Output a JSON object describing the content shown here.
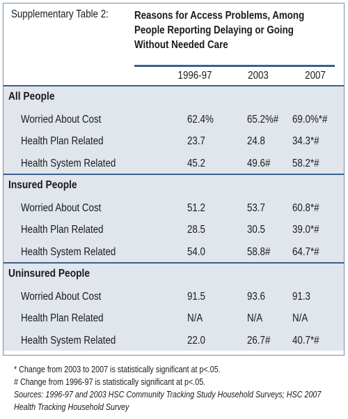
{
  "table_label": "Supplementary Table 2:",
  "title_lines": [
    "Reasons for Access Problems, Among",
    "People Reporting Delaying or Going",
    "Without Needed Care"
  ],
  "columns": [
    "1996-97",
    "2003",
    "2007"
  ],
  "sections": [
    {
      "name": "All People",
      "rows": [
        {
          "label": "Worried About Cost",
          "values": [
            "62.4%",
            "65.2%#",
            "69.0%*#"
          ]
        },
        {
          "label": "Health Plan Related",
          "values": [
            "23.7",
            "24.8",
            "34.3*#"
          ]
        },
        {
          "label": "Health System Related",
          "values": [
            "45.2",
            "49.6#",
            "58.2*#"
          ]
        }
      ]
    },
    {
      "name": "Insured People",
      "rows": [
        {
          "label": "Worried About Cost",
          "values": [
            "51.2",
            "53.7",
            "60.8*#"
          ]
        },
        {
          "label": "Health Plan Related",
          "values": [
            "28.5",
            "30.5",
            "39.0*#"
          ]
        },
        {
          "label": "Health System Related",
          "values": [
            "54.0",
            "58.8#",
            "64.7*#"
          ]
        }
      ]
    },
    {
      "name": "Uninsured People",
      "rows": [
        {
          "label": "Worried About Cost",
          "values": [
            "91.5",
            "93.6",
            "91.3"
          ]
        },
        {
          "label": "Health Plan Related",
          "values": [
            "N/A",
            "N/A",
            "N/A"
          ]
        },
        {
          "label": "Health System Related",
          "values": [
            "22.0",
            "26.7#",
            "40.7*#"
          ]
        }
      ]
    }
  ],
  "footnotes": [
    "* Change from 2003 to 2007 is statistically significant at p<.05.",
    "# Change from 1996-97 is statistically significant at p<.05.",
    "Sources: 1996-97 and 2003 HSC Community Tracking Study Household Surveys; HSC 2007",
    "Health Tracking Household Survey"
  ],
  "colors": {
    "accent": "#3a5f8c",
    "shade": "#e0e6ec",
    "border": "#6d8fb0"
  }
}
